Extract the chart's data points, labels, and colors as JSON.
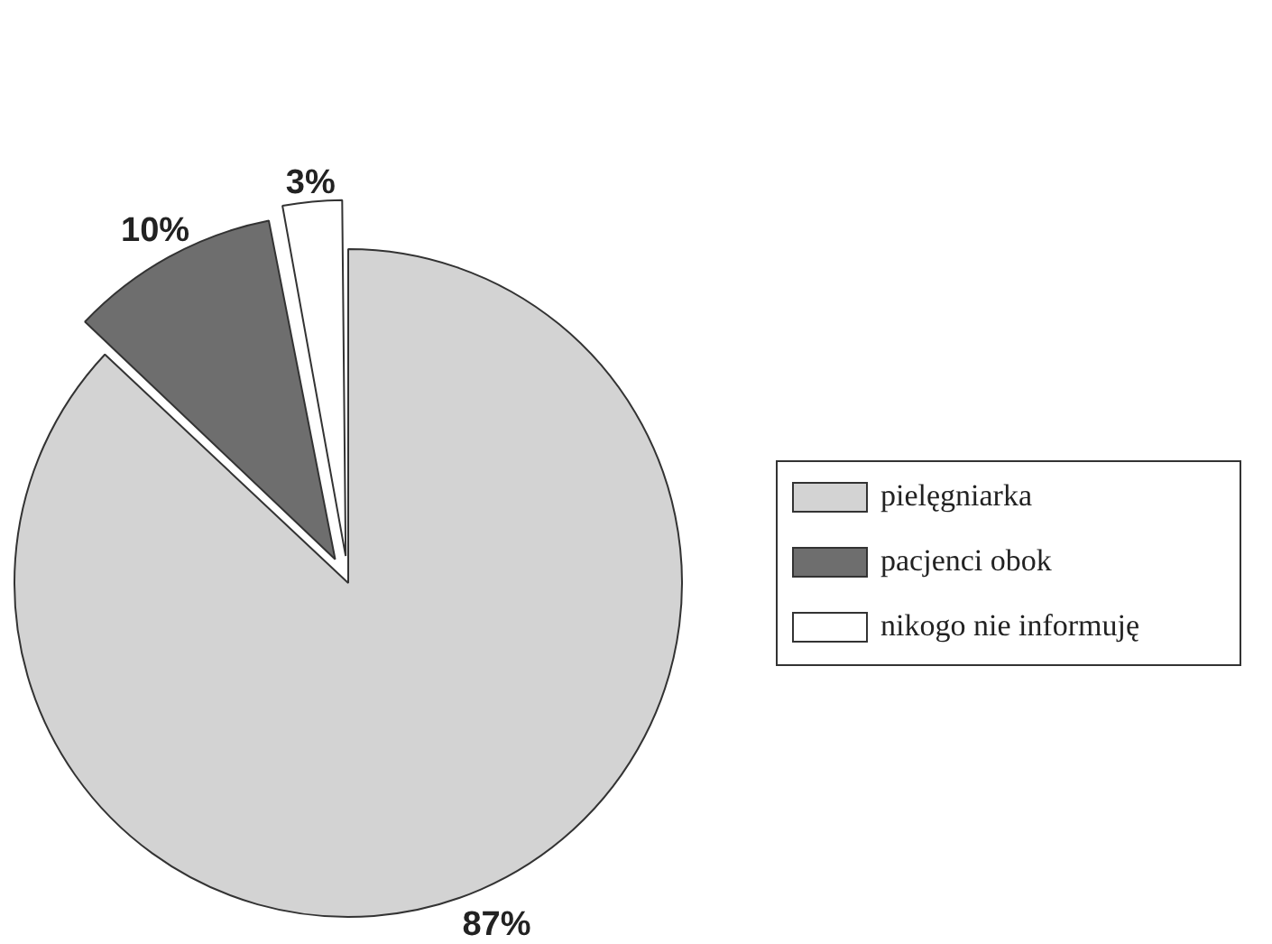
{
  "chart_data": {
    "type": "pie",
    "categories": [
      "pielęgniarka",
      "pacjenci obok",
      "nikogo nie informuję"
    ],
    "values": [
      87,
      10,
      3
    ],
    "colors": [
      "#d3d3d3",
      "#6e6e6e",
      "#ffffff"
    ],
    "value_labels": [
      "87%",
      "10%",
      "3%"
    ],
    "legend": "right"
  }
}
